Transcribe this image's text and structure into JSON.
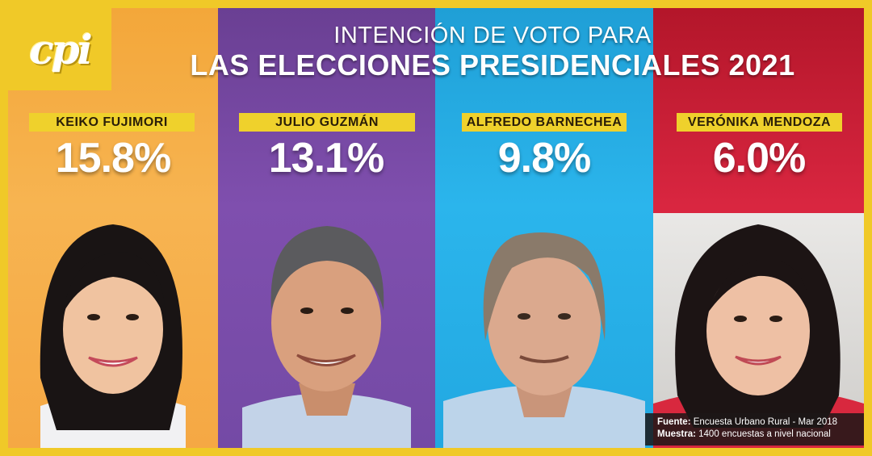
{
  "logo": {
    "text": "cpi",
    "icon": "cpi-logo-icon"
  },
  "header": {
    "title_line1": "INTENCIÓN DE VOTO PARA",
    "title_line2": "LAS ELECCIONES PRESIDENCIALES 2021"
  },
  "chart_data": {
    "type": "bar",
    "title": "INTENCIÓN DE VOTO PARA LAS ELECCIONES PRESIDENCIALES 2021",
    "categories": [
      "KEIKO FUJIMORI",
      "JULIO GUZMÁN",
      "ALFREDO BARNECHEA",
      "VERÓNIKA MENDOZA"
    ],
    "values": [
      15.8,
      13.1,
      9.8,
      6.0
    ],
    "value_labels": [
      "15.8%",
      "13.1%",
      "9.8%",
      "6.0%"
    ],
    "unit": "%",
    "colors": [
      "#f5a844",
      "#7c4dab",
      "#26ade6",
      "#d42238"
    ]
  },
  "source": {
    "fuente_label": "Fuente:",
    "fuente_text": "Encuesta Urbano Rural - Mar 2018",
    "muestra_label": "Muestra:",
    "muestra_text": "1400 encuestas a nivel nacional"
  }
}
